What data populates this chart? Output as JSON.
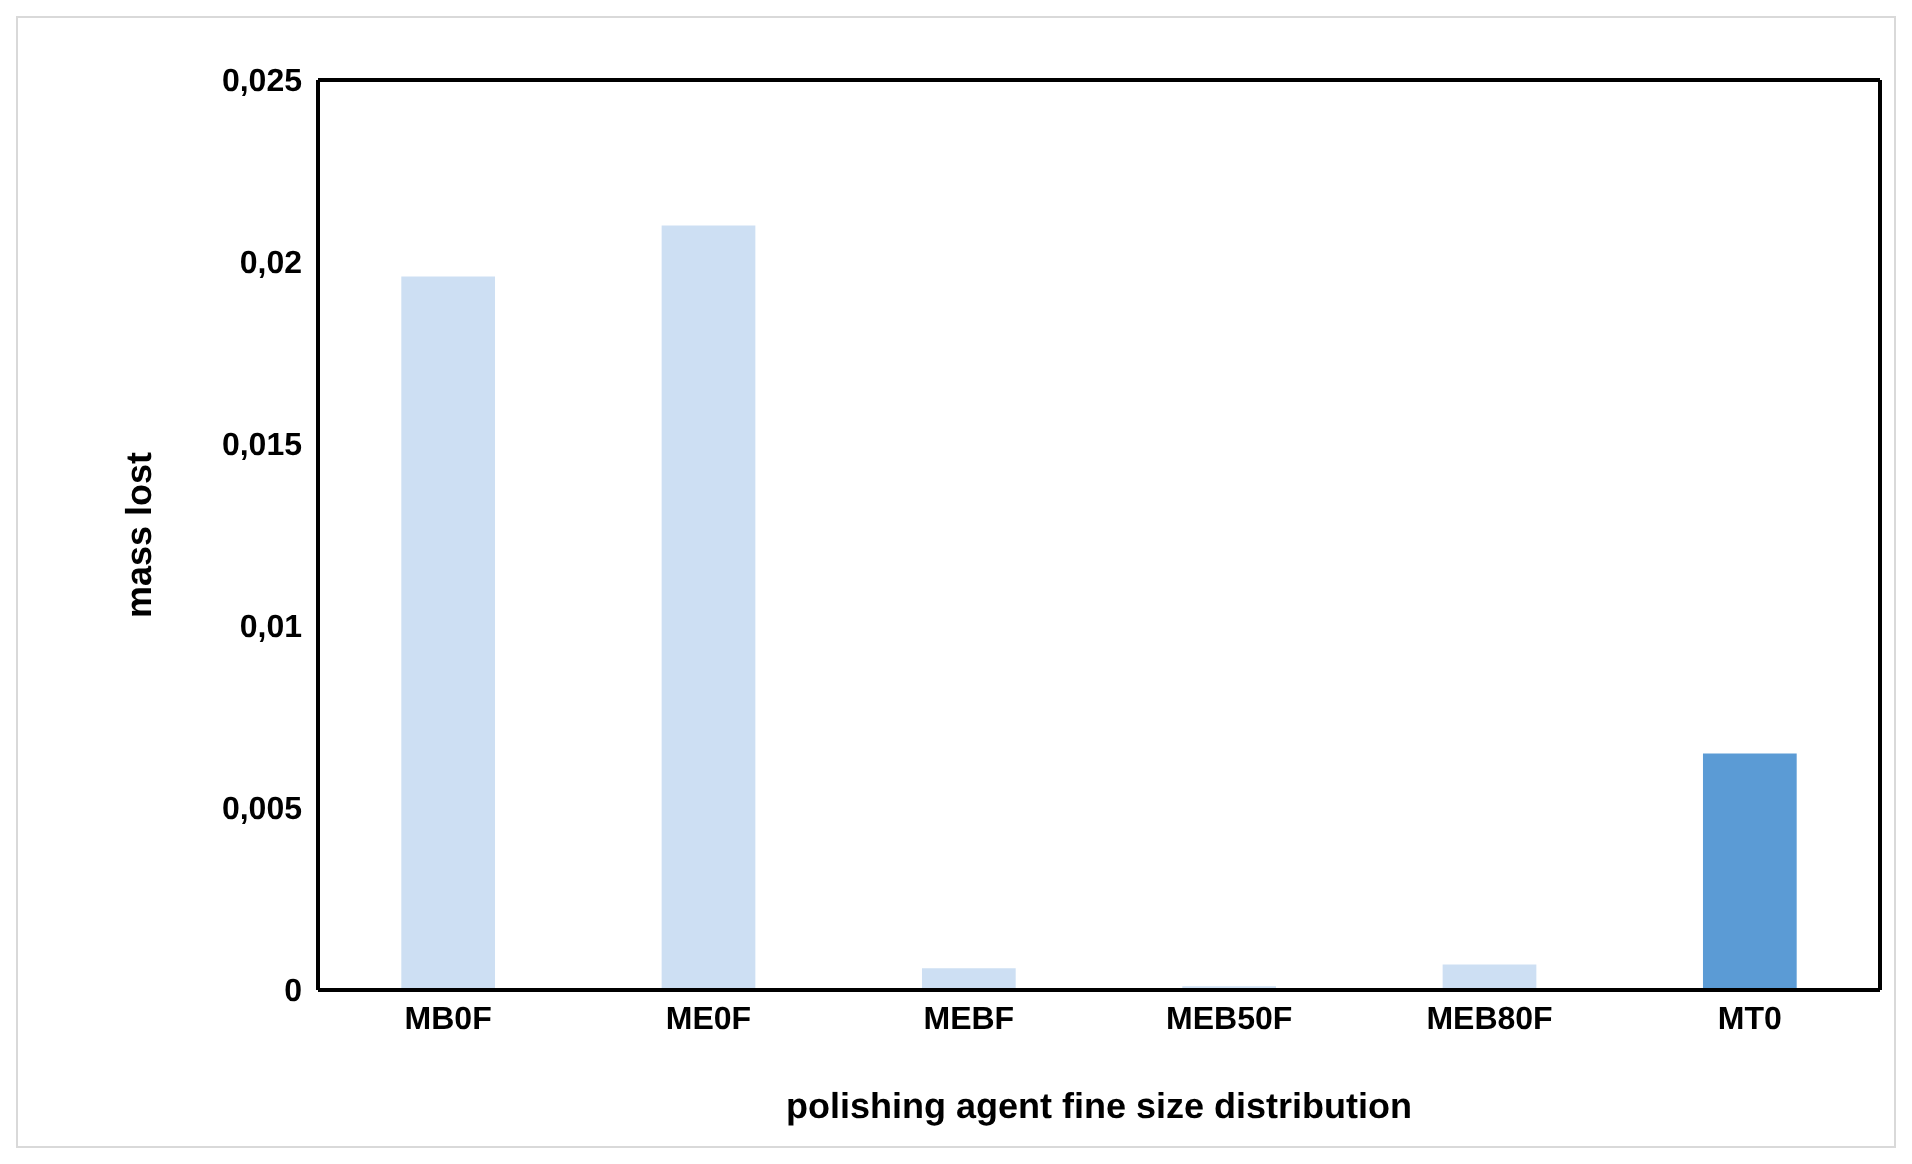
{
  "chart_data": {
    "type": "bar",
    "xlabel": "polishing agent fine size distribution",
    "ylabel": "mass lost",
    "categories": [
      "MB0F",
      "ME0F",
      "MEBF",
      "MEB50F",
      "MEB80F",
      "MT0"
    ],
    "values": [
      0.0196,
      0.021,
      0.0006,
      0.0001,
      0.0007,
      0.0065
    ],
    "colors": [
      "#cddff3",
      "#cddff3",
      "#cddff3",
      "#cddff3",
      "#cddff3",
      "#5b9bd5"
    ],
    "ylim": [
      0,
      0.025
    ],
    "yticks": [
      {
        "value": 0,
        "label": "0"
      },
      {
        "value": 0.005,
        "label": "0,005"
      },
      {
        "value": 0.01,
        "label": "0,01"
      },
      {
        "value": 0.015,
        "label": "0,015"
      },
      {
        "value": 0.02,
        "label": "0,02"
      },
      {
        "value": 0.025,
        "label": "0,025"
      }
    ],
    "grid": false,
    "legend": false
  }
}
